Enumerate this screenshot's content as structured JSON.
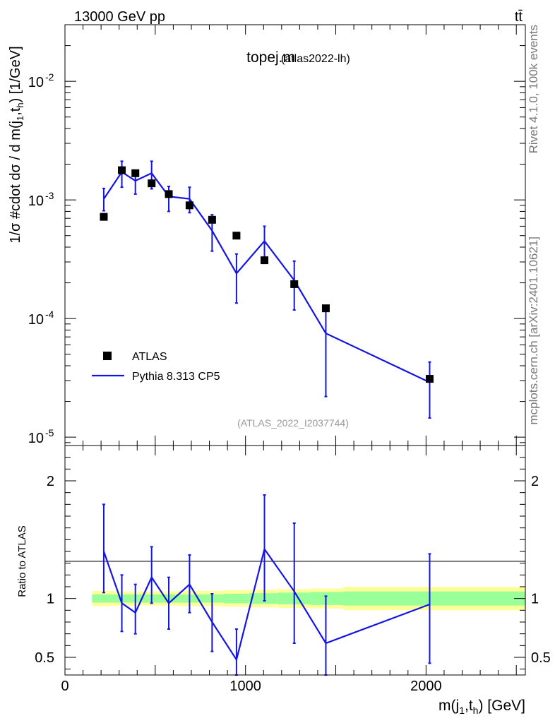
{
  "header": {
    "energy_label": "13000 GeV pp",
    "process_label": "tt̄",
    "plot_title": "topej.m",
    "plot_subtitle": "(atlas2022-lh)",
    "analysis_id": "(ATLAS_2022_I2037744)",
    "rivet_label": "Rivet 4.1.0,  100k events",
    "source_label": "mcplots.cern.ch [arXiv:2401.10621]"
  },
  "chart_data": {
    "type": "scatter",
    "title": "topej.m (atlas2022-lh)",
    "xlabel": "m(j1,th) [GeV]",
    "ylabel": "1/σ #cdot dσ / d m(j1,th) [1/GeV]",
    "ratio_ylabel": "Ratio to ATLAS",
    "xlim": [
      0,
      2550
    ],
    "ylim": [
      8.5e-06,
      0.03
    ],
    "ratio_ylim": [
      0.35,
      2.3
    ],
    "xticks": [
      0,
      1000,
      2000
    ],
    "yticks": [
      {
        "label": "10",
        "exp": "-5",
        "value": 1e-05
      },
      {
        "label": "10",
        "exp": "-4",
        "value": 0.0001
      },
      {
        "label": "10",
        "exp": "-3",
        "value": 0.001
      },
      {
        "label": "10",
        "exp": "-2",
        "value": 0.01
      }
    ],
    "ratio_yticks": [
      {
        "label": "0.5",
        "value": 0.5
      },
      {
        "label": "1",
        "value": 1
      },
      {
        "label": "2",
        "value": 2
      }
    ],
    "legend": [
      "ATLAS",
      "Pythia 8.313 CP5"
    ],
    "data_series": {
      "name": "ATLAS",
      "x": [
        215,
        315,
        390,
        480,
        575,
        690,
        815,
        950,
        1105,
        1270,
        1445,
        2020
      ],
      "y": [
        0.00072,
        0.00178,
        0.00168,
        0.00138,
        0.00112,
        0.0009,
        0.00068,
        0.0005,
        0.00031,
        0.000195,
        0.000122,
        3.1e-05
      ]
    },
    "mc_series": {
      "name": "Pythia 8.313 CP5",
      "x": [
        215,
        315,
        390,
        480,
        575,
        690,
        815,
        950,
        1105,
        1270,
        1445,
        2020
      ],
      "y": [
        0.00102,
        0.00172,
        0.00145,
        0.00168,
        0.00107,
        0.00102,
        0.00055,
        0.00024,
        0.00045,
        0.00021,
        7.5e-05,
        2.9e-05
      ],
      "err_lo": [
        0.00081,
        0.00128,
        0.00112,
        0.00124,
        0.0008,
        0.00078,
        0.00037,
        0.000135,
        0.0003,
        0.000118,
        2.2e-05,
        1.45e-05
      ],
      "err_hi": [
        0.00125,
        0.00212,
        0.00178,
        0.00212,
        0.0013,
        0.00128,
        0.00075,
        0.00035,
        0.0006,
        0.000305,
        0.000128,
        4.3e-05
      ]
    },
    "ratio": {
      "x": [
        215,
        315,
        390,
        480,
        575,
        690,
        815,
        950,
        1105,
        1270,
        1445,
        2020
      ],
      "y": [
        1.4,
        0.96,
        0.88,
        1.18,
        0.96,
        1.12,
        0.8,
        0.48,
        1.42,
        1.06,
        0.62,
        0.95
      ],
      "err_lo": [
        1.05,
        0.72,
        0.7,
        0.96,
        0.74,
        0.88,
        0.55,
        0.35,
        0.98,
        0.62,
        0.35,
        0.45
      ],
      "err_hi": [
        1.8,
        1.2,
        1.12,
        1.44,
        1.18,
        1.37,
        1.04,
        0.74,
        1.88,
        1.64,
        1.02,
        1.38
      ]
    },
    "uncertainty_bands": {
      "edges": [
        150,
        265,
        360,
        430,
        530,
        625,
        750,
        880,
        1020,
        1180,
        1360,
        1540,
        2550
      ],
      "stat": [
        0.035,
        0.035,
        0.035,
        0.035,
        0.035,
        0.035,
        0.035,
        0.04,
        0.045,
        0.05,
        0.055,
        0.06
      ],
      "total": [
        0.065,
        0.06,
        0.06,
        0.06,
        0.06,
        0.065,
        0.065,
        0.07,
        0.075,
        0.08,
        0.085,
        0.1
      ]
    }
  },
  "colors": {
    "mc_line": "#1414e6",
    "data_marker": "#000000",
    "band_stat": "#99ff99",
    "band_total": "#ffff99",
    "side_text": "#777777"
  }
}
